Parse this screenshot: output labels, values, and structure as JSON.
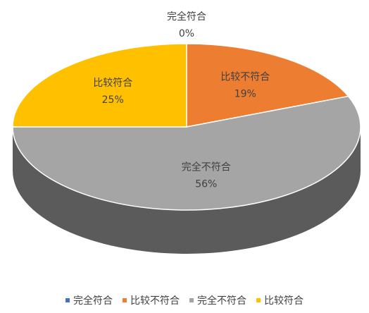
{
  "chart_data": {
    "type": "pie",
    "categories": [
      "完全符合",
      "比较不符合",
      "完全不符合",
      "比较符合"
    ],
    "values": [
      0,
      19,
      56,
      25
    ],
    "value_labels": [
      "0%",
      "19%",
      "56%",
      "25%"
    ],
    "colors": [
      "#4472c4",
      "#ed7d31",
      "#a5a5a5",
      "#ffc000"
    ],
    "legend": "bottom"
  }
}
